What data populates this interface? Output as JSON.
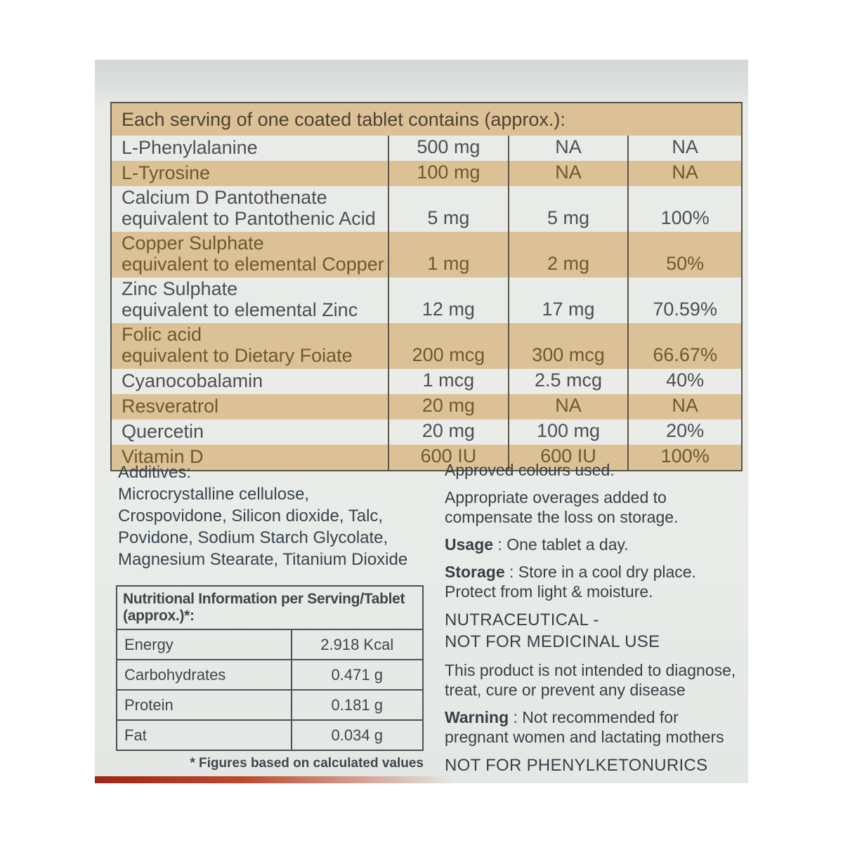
{
  "label": {
    "supplement_table": {
      "header": "Each serving of one coated tablet contains (approx.):",
      "rows": [
        {
          "name": "L-Phenylalanine",
          "name2": "",
          "amount": "500 mg",
          "rda": "NA",
          "percent": "NA",
          "shade": "white"
        },
        {
          "name": "L-Tyrosine",
          "name2": "",
          "amount": "100 mg",
          "rda": "NA",
          "percent": "NA",
          "shade": "tan"
        },
        {
          "name": "Calcium D Pantothenate",
          "name2": "equivalent to Pantothenic Acid",
          "amount": "5 mg",
          "rda": "5 mg",
          "percent": "100%",
          "shade": "white"
        },
        {
          "name": "Copper Sulphate",
          "name2": "equivalent to elemental Copper",
          "amount": "1 mg",
          "rda": "2 mg",
          "percent": "50%",
          "shade": "tan"
        },
        {
          "name": "Zinc Sulphate",
          "name2": "equivalent to elemental Zinc",
          "amount": "12 mg",
          "rda": "17 mg",
          "percent": "70.59%",
          "shade": "white"
        },
        {
          "name": "Folic acid",
          "name2": "equivalent to Dietary Foiate",
          "amount": "200 mcg",
          "rda": "300 mcg",
          "percent": "66.67%",
          "shade": "tan"
        },
        {
          "name": "Cyanocobalamin",
          "name2": "",
          "amount": "1 mcg",
          "rda": "2.5 mcg",
          "percent": "40%",
          "shade": "white"
        },
        {
          "name": "Resveratrol",
          "name2": "",
          "amount": "20 mg",
          "rda": "NA",
          "percent": "NA",
          "shade": "tan"
        },
        {
          "name": "Quercetin",
          "name2": "",
          "amount": "20 mg",
          "rda": "100 mg",
          "percent": "20%",
          "shade": "white"
        },
        {
          "name": "Vitamin D",
          "name2": "",
          "amount": "600 IU",
          "rda": "600 IU",
          "percent": "100%",
          "shade": "tan"
        }
      ]
    },
    "additives": {
      "title": "Additives:",
      "text": "Microcrystalline cellulose,\nCrospovidone, Silicon dioxide, Talc,\nPovidone, Sodium Starch Glycolate,\nMagnesium Stearate, Titanium Dioxide"
    },
    "nutrition_table": {
      "header": "Nutritional Information per Serving/Tablet (approx.)*:",
      "rows": [
        {
          "label": "Energy",
          "value": "2.918 Kcal"
        },
        {
          "label": "Carbohydrates",
          "value": "0.471 g"
        },
        {
          "label": "Protein",
          "value": "0.181 g"
        },
        {
          "label": "Fat",
          "value": "0.034 g"
        }
      ],
      "footnote": "* Figures based on calculated values"
    },
    "info": {
      "approved": "Approved colours used.",
      "overages": "Appropriate overages added to\ncompensate the loss on storage.",
      "usage_label": "Usage",
      "usage_text": " : One tablet a day.",
      "storage_label": "Storage",
      "storage_text": " : Store in a cool dry place.\nProtect from light & moisture.",
      "nutraceutical": "NUTRACEUTICAL -\nNOT FOR MEDICINAL USE",
      "disclaimer": "This product is not intended to diagnose,\ntreat, cure or prevent any disease",
      "warning_label": "Warning",
      "warning_text": " : Not recommended for\npregnant women and lactating mothers",
      "pku": "NOT FOR PHENYLKETONURICS"
    },
    "colors": {
      "row_tan": "#dcc096",
      "accent_red": "#b0301f"
    }
  }
}
